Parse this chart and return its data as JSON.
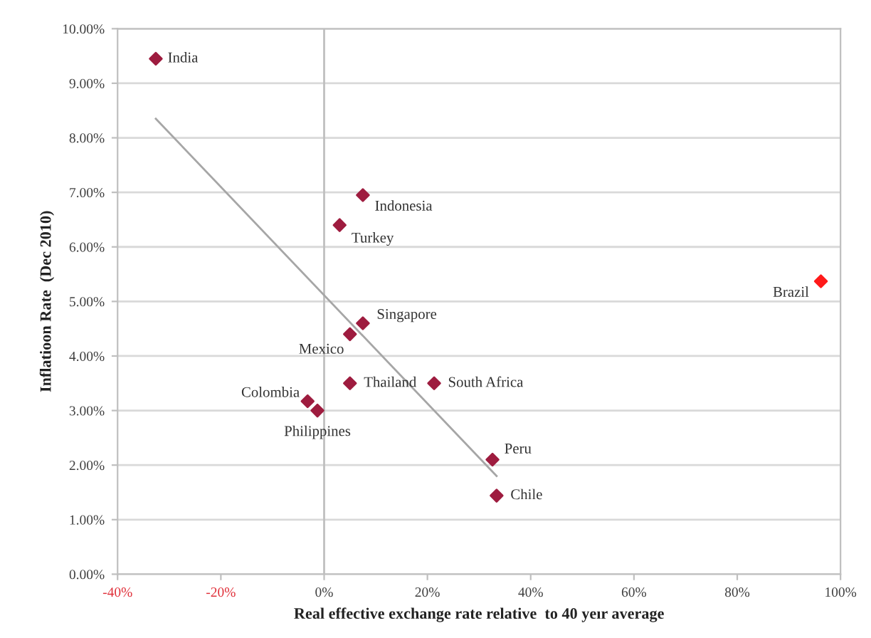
{
  "chart_data": {
    "type": "scatter",
    "xlabel": "Real effective exchange rate relative  to 40 yeır average",
    "ylabel": "Inflatioon Rate  (Dec 2010)",
    "series": [
      {
        "marker": "diamond",
        "color": "#9e1c3f",
        "x": [
          -32.6,
          7.5,
          3,
          7.5,
          5,
          5,
          21.3,
          -3.2,
          -1.3,
          32.6,
          33.4,
          96.2
        ],
        "values": [
          9.45,
          6.95,
          6.4,
          4.6,
          4.4,
          3.5,
          3.5,
          3.17,
          3.0,
          2.1,
          1.44,
          5.37
        ],
        "colors": [
          "#9e1c3f",
          "#9e1c3f",
          "#9e1c3f",
          "#9e1c3f",
          "#9e1c3f",
          "#9e1c3f",
          "#9e1c3f",
          "#9e1c3f",
          "#9e1c3f",
          "#9e1c3f",
          "#9e1c3f",
          "#ff1a1a"
        ]
      },
      {
        "type": "line",
        "color": "#a6a6a6",
        "x": [
          -32.6,
          33.4
        ],
        "values": [
          8.35,
          1.8
        ]
      }
    ],
    "annotations": [
      {
        "text": "India",
        "x": -32.6,
        "y": 9.45
      },
      {
        "text": "Indonesia",
        "x": 7.5,
        "y": 6.95
      },
      {
        "text": "Turkey",
        "x": 3,
        "y": 6.4
      },
      {
        "text": "Singapore",
        "x": 7.5,
        "y": 4.6
      },
      {
        "text": "Mexico",
        "x": 5,
        "y": 4.4
      },
      {
        "text": "Thailand",
        "x": 5,
        "y": 3.5
      },
      {
        "text": "South Africa",
        "x": 21.3,
        "y": 3.5
      },
      {
        "text": "Colombia",
        "x": -3.2,
        "y": 3.17
      },
      {
        "text": "Philippines",
        "x": -1.3,
        "y": 3.0
      },
      {
        "text": "Peru",
        "x": 32.6,
        "y": 2.1
      },
      {
        "text": "Chile",
        "x": 33.4,
        "y": 1.44
      },
      {
        "text": "Brazil",
        "x": 96.2,
        "y": 5.37
      }
    ],
    "ref_lines": [
      {
        "axis": "x",
        "value": 0,
        "color": "#bfbfbf"
      }
    ],
    "xlim": [
      -40,
      100
    ],
    "ylim": [
      0,
      10
    ],
    "xticks": [
      {
        "value": -40,
        "label": "-40%"
      },
      {
        "value": -20,
        "label": "-20%"
      },
      {
        "value": 0,
        "label": "0%"
      },
      {
        "value": 20,
        "label": "20%"
      },
      {
        "value": 40,
        "label": "40%"
      },
      {
        "value": 60,
        "label": "60%"
      },
      {
        "value": 80,
        "label": "80%"
      },
      {
        "value": 100,
        "label": "100%"
      }
    ],
    "yticks": [
      {
        "value": 0,
        "label": "0.00%"
      },
      {
        "value": 1,
        "label": "1.00%"
      },
      {
        "value": 2,
        "label": "2.00%"
      },
      {
        "value": 3,
        "label": "3.00%"
      },
      {
        "value": 4,
        "label": "4.00%"
      },
      {
        "value": 5,
        "label": "5.00%"
      },
      {
        "value": 6,
        "label": "6.00%"
      },
      {
        "value": 7,
        "label": "7.00%"
      },
      {
        "value": 8,
        "label": "8.00%"
      },
      {
        "value": 9,
        "label": "9.00%"
      },
      {
        "value": 10,
        "label": "10.00%"
      }
    ],
    "grid": "y",
    "legend": false
  }
}
